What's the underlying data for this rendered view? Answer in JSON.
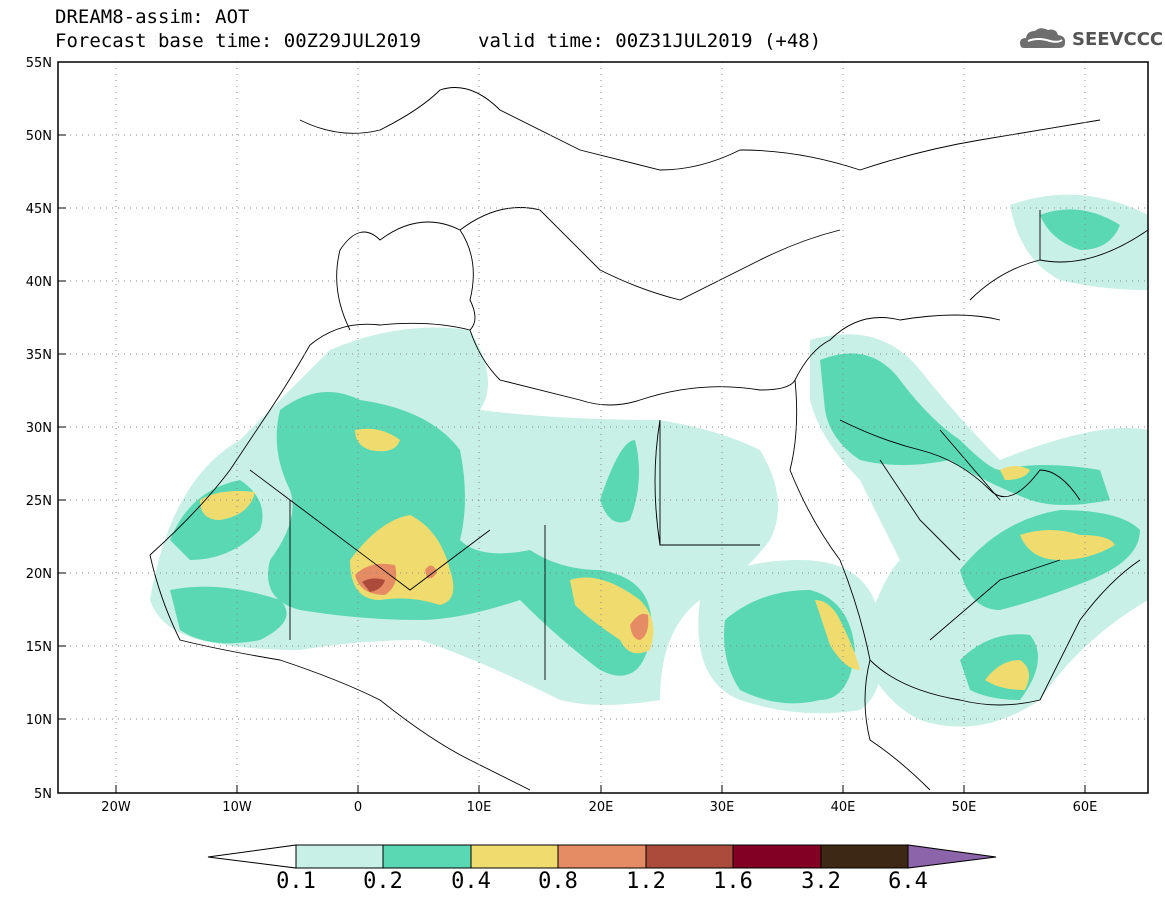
{
  "header": {
    "line1": "DREAM8-assim: AOT",
    "line2": "Forecast base time: 00Z29JUL2019",
    "line3": "valid time: 00Z31JUL2019 (+48)"
  },
  "logo": {
    "text": "SEEVCCC",
    "icon": "cloud-icon"
  },
  "map": {
    "lat_labels": [
      "55N",
      "50N",
      "45N",
      "40N",
      "35N",
      "30N",
      "25N",
      "20N",
      "15N",
      "10N",
      "5N"
    ],
    "lon_labels": [
      "20W",
      "10W",
      "0",
      "10E",
      "20E",
      "30E",
      "40E",
      "50E",
      "60E"
    ],
    "lat_range": [
      5,
      55
    ],
    "lon_range": [
      -25,
      65
    ]
  },
  "colorbar": {
    "labels": [
      "0.1",
      "0.2",
      "0.4",
      "0.8",
      "1.2",
      "1.6",
      "3.2",
      "6.4"
    ],
    "colors": [
      "#ffffff",
      "#c8f0e6",
      "#5ad8b4",
      "#f0dc6e",
      "#e68c64",
      "#aa4b3c",
      "#820023",
      "#3c2814",
      "#8c64aa"
    ]
  }
}
